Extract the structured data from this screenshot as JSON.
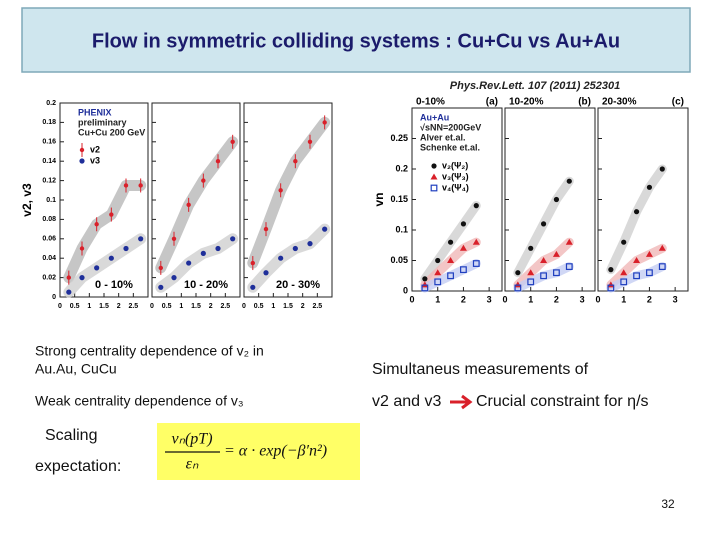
{
  "header": {
    "title": "Flow in symmetric colliding systems : Cu+Cu vs Au+Au"
  },
  "reference": "Phys.Rev.Lett. 107 (2011) 252301",
  "left_plot": {
    "ylabel": "v2, v3",
    "ylim": [
      0,
      0.2
    ],
    "yticks": [
      0,
      0.02,
      0.04,
      0.06,
      0.08,
      0.1,
      0.12,
      0.14,
      0.16,
      0.18,
      0.2
    ],
    "xlim": [
      0,
      3
    ],
    "xticks": [
      0,
      0.5,
      1,
      1.5,
      2,
      2.5
    ],
    "x": [
      0.3,
      0.75,
      1.25,
      1.75,
      2.25,
      2.75
    ],
    "legend": [
      "PHENIX",
      "preliminary",
      "Cu+Cu 200 GeV"
    ],
    "series": [
      {
        "name": "v2",
        "color": "#d9202a",
        "marker": "cross",
        "band": "#b8b8b8"
      },
      {
        "name": "v3",
        "color": "#1f2f9a",
        "marker": "circle",
        "band": "#cfcfcf"
      }
    ],
    "panels": [
      {
        "label": "0 - 10%",
        "values": [
          [
            0.02,
            0.05,
            0.075,
            0.085,
            0.115,
            0.115
          ],
          [
            0.005,
            0.02,
            0.03,
            0.04,
            0.05,
            0.06
          ]
        ]
      },
      {
        "label": "10 - 20%",
        "values": [
          [
            0.03,
            0.06,
            0.095,
            0.12,
            0.14,
            0.16
          ],
          [
            0.01,
            0.02,
            0.035,
            0.045,
            0.05,
            0.06
          ]
        ]
      },
      {
        "label": "20 - 30%",
        "values": [
          [
            0.035,
            0.07,
            0.11,
            0.14,
            0.16,
            0.18
          ],
          [
            0.01,
            0.025,
            0.04,
            0.05,
            0.055,
            0.07
          ]
        ]
      }
    ]
  },
  "right_plot": {
    "ylabel": "vn",
    "ylim": [
      0,
      0.3
    ],
    "yticks": [
      0,
      0.05,
      0.1,
      0.15,
      0.2,
      0.25
    ],
    "xlim": [
      0,
      3.5
    ],
    "xticks": [
      0,
      1,
      2,
      3
    ],
    "x": [
      0.5,
      1,
      1.5,
      2,
      2.5
    ],
    "legend": [
      "Au+Au",
      "√sNN=200GeV",
      "Alver et.al.",
      "Schenke et.al."
    ],
    "series": [
      {
        "name": "v₂(Ψ₂)",
        "color": "#111111",
        "marker": "circle",
        "band": "#d0d0d0"
      },
      {
        "name": "v₃(Ψ₃)",
        "color": "#d9202a",
        "marker": "triangle",
        "band": "#f0b8b8"
      },
      {
        "name": "v₄(Ψ₄)",
        "color": "#1f3fbf",
        "marker": "square",
        "band": "#c4cdf2"
      }
    ],
    "panels": [
      {
        "label": "0-10%",
        "tag": "(a)",
        "values": [
          [
            0.02,
            0.05,
            0.08,
            0.11,
            0.14
          ],
          [
            0.01,
            0.03,
            0.05,
            0.07,
            0.08
          ],
          [
            0.005,
            0.015,
            0.025,
            0.035,
            0.045
          ]
        ]
      },
      {
        "label": "10-20%",
        "tag": "(b)",
        "values": [
          [
            0.03,
            0.07,
            0.11,
            0.15,
            0.18
          ],
          [
            0.01,
            0.03,
            0.05,
            0.06,
            0.08
          ],
          [
            0.005,
            0.015,
            0.025,
            0.03,
            0.04
          ]
        ]
      },
      {
        "label": "20-30%",
        "tag": "(c)",
        "values": [
          [
            0.035,
            0.08,
            0.13,
            0.17,
            0.2
          ],
          [
            0.01,
            0.03,
            0.05,
            0.06,
            0.07
          ],
          [
            0.005,
            0.015,
            0.025,
            0.03,
            0.04
          ]
        ]
      }
    ]
  },
  "text": {
    "left_line1": "Strong centrality dependence of v₂ in",
    "left_line2": "Au.Au, CuCu",
    "left_line3": "Weak  centrality dependence of  v₃",
    "right_line1": "Simultaneus measurements of",
    "right_line2a": "v2 and v3",
    "right_line2b": "Crucial constraint for η/s",
    "scaling": "Scaling",
    "expectation": "expectation:"
  },
  "formula": {
    "numerator": "vₙ(pT)",
    "denominator": "εₙ",
    "rhs": "= α · exp(−β′n²)"
  },
  "page_number": "32"
}
